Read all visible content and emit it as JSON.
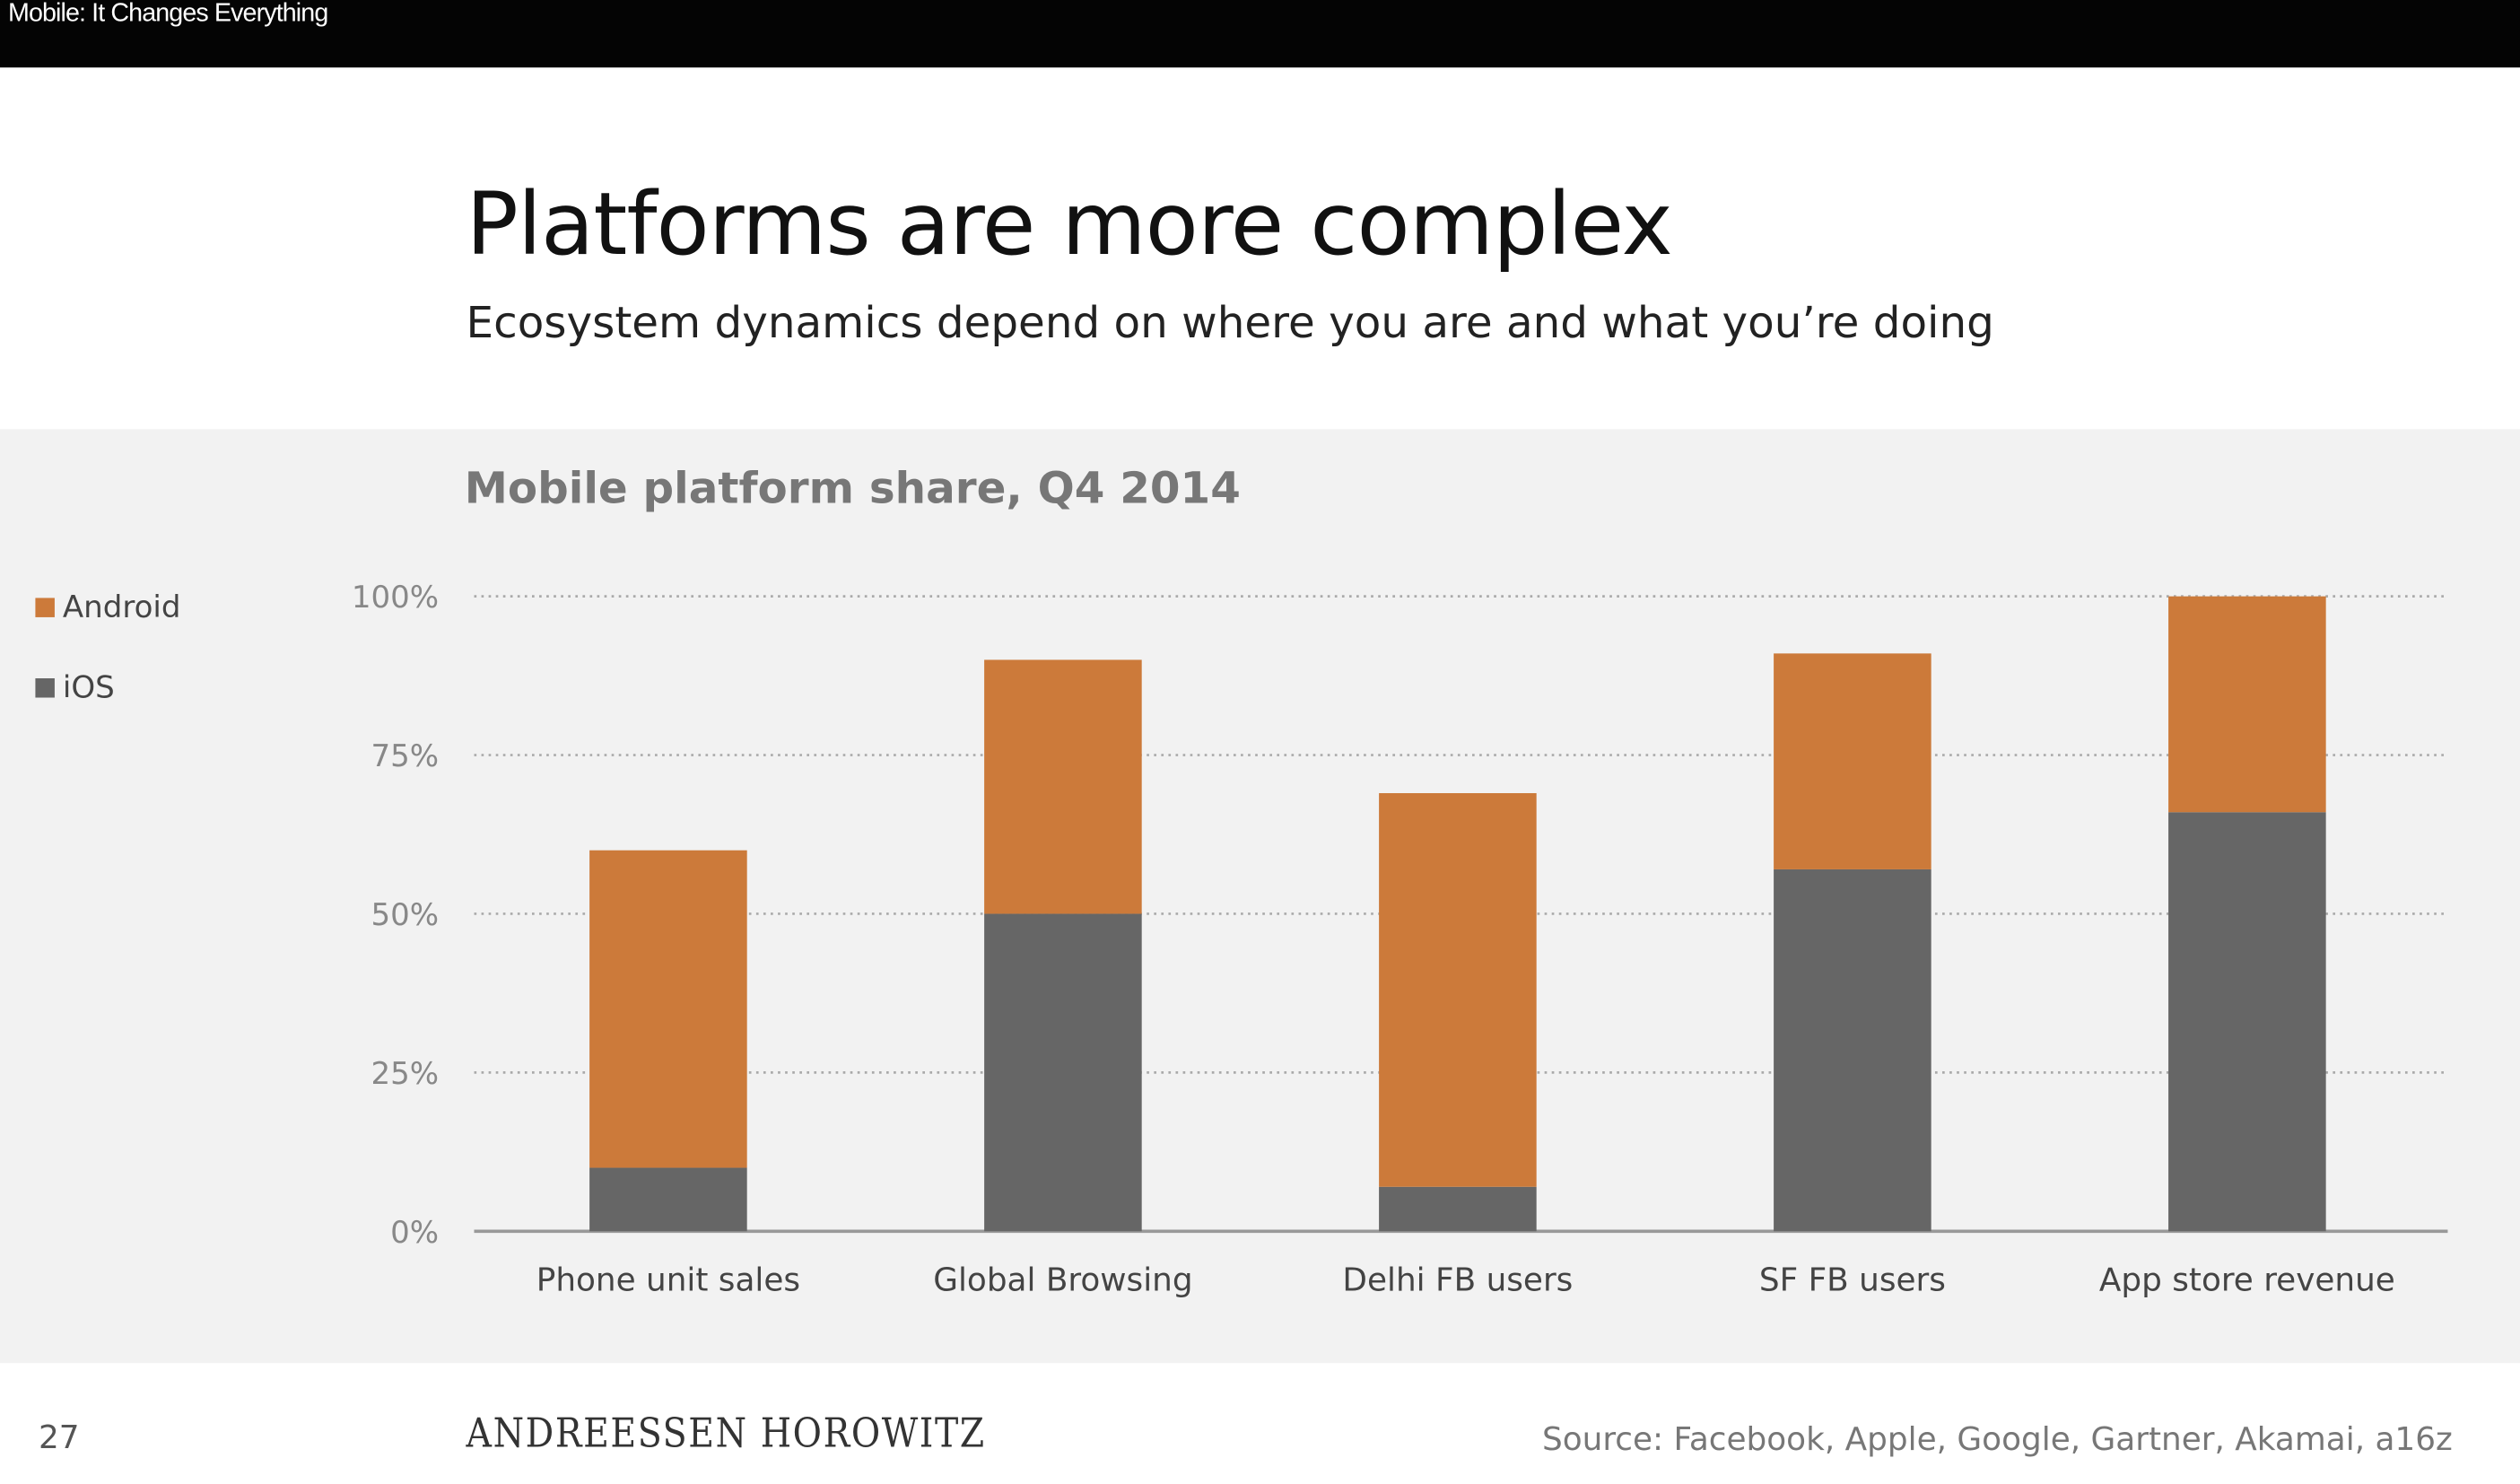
{
  "window_title": "Mobile: It Changes Everything",
  "slide": {
    "title": "Platforms are more complex",
    "subtitle": "Ecosystem dynamics depend on where you are and what you’re doing",
    "page_number": "27",
    "logo_text": "ANDREESSEN HOROWITZ",
    "source": "Source: Facebook, Apple, Google, Gartner, Akamai, a16z"
  },
  "chart_data": {
    "type": "bar",
    "stacked": true,
    "title": "Mobile platform share, Q4 2014",
    "xlabel": "",
    "ylabel": "",
    "ylim": [
      0,
      100
    ],
    "yticks": [
      "0%",
      "25%",
      "50%",
      "75%",
      "100%"
    ],
    "grid": true,
    "legend_placement": "left",
    "categories": [
      "Phone unit sales",
      "Global Browsing",
      "Delhi FB users",
      "SF FB users",
      "App store revenue"
    ],
    "series": [
      {
        "name": "iOS",
        "color": "#666666",
        "values": [
          10,
          50,
          7,
          57,
          66
        ]
      },
      {
        "name": "Android",
        "color": "#cc7a3a",
        "values": [
          50,
          40,
          62,
          34,
          34
        ]
      }
    ]
  }
}
